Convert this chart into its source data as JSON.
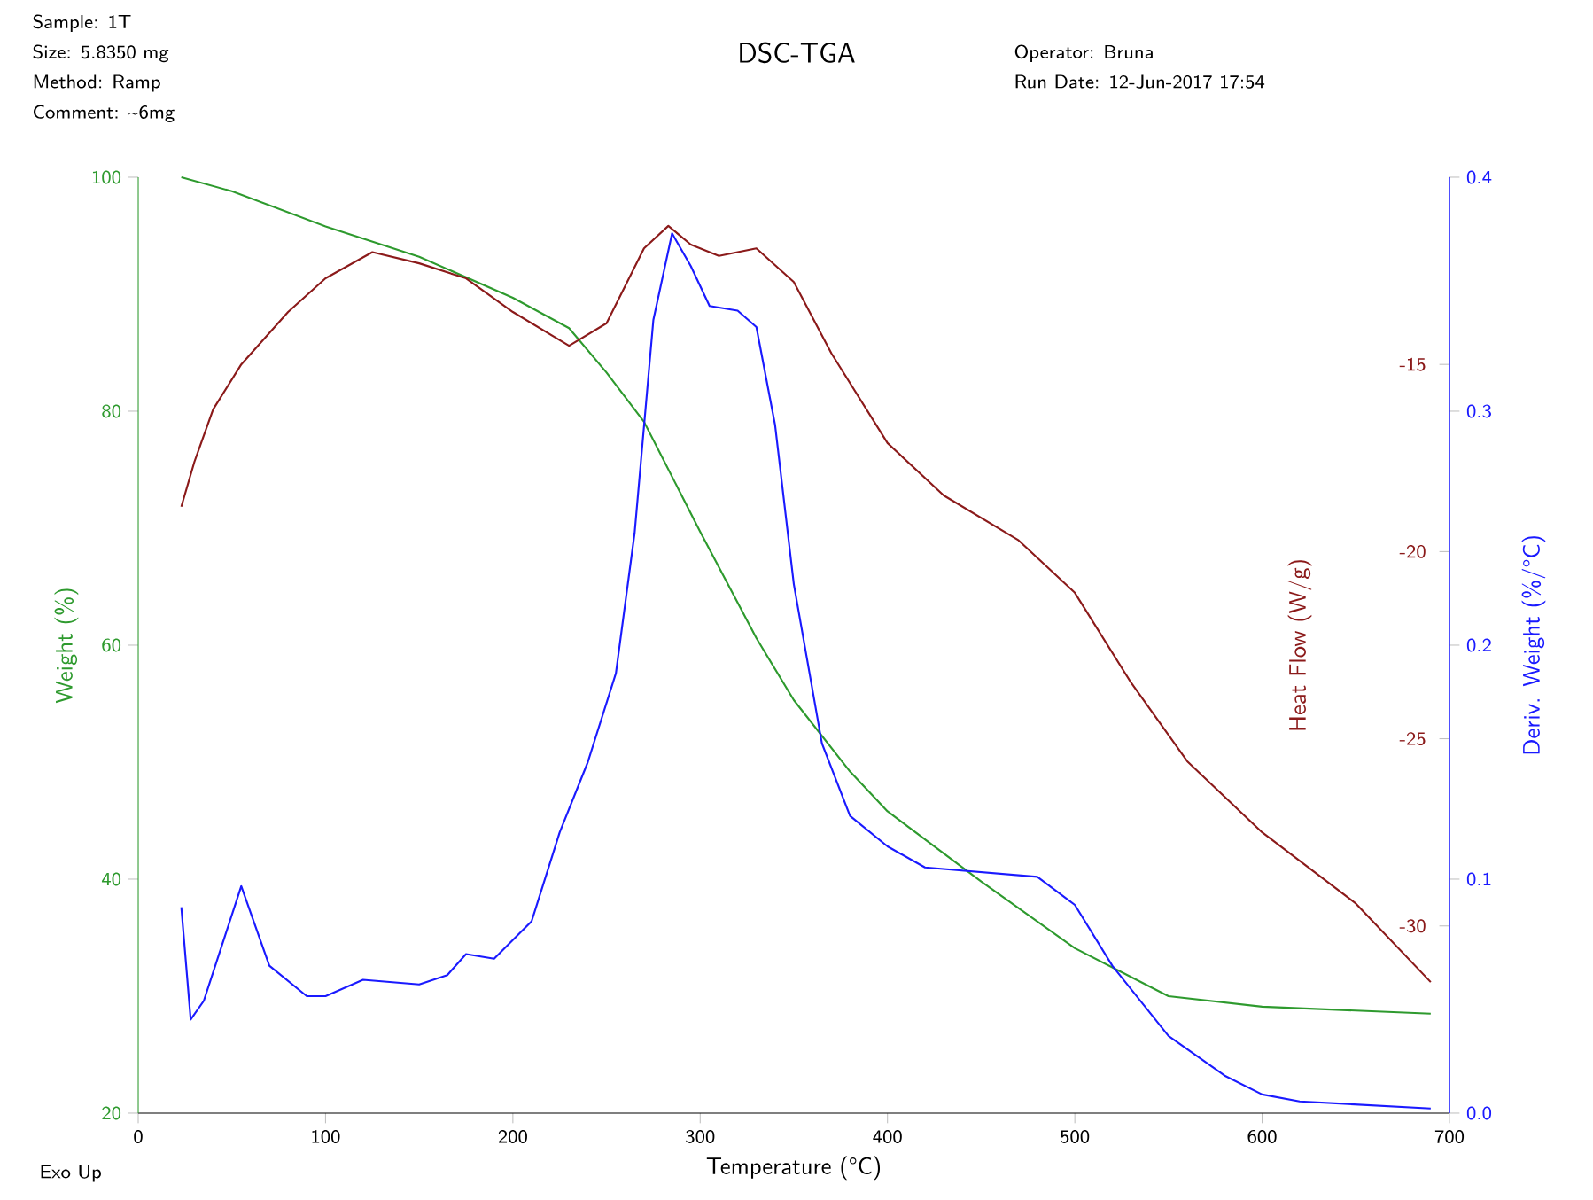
{
  "chart_data": {
    "type": "line",
    "title": "DSC-TGA",
    "xlabel": "Temperature (°C)",
    "ylabel": "Weight (%)",
    "y2label": "Heat Flow (W/g)",
    "y3label": "Deriv. Weight (%/°C)",
    "annotations": [
      "Sample: 1T",
      "Size:  5.8350 mg",
      "Method: Ramp",
      "Comment: ~6mg",
      "Operator: Bruna",
      "Run Date: 12-Jun-2017 17:54",
      "Exo Up"
    ],
    "xlim": [
      0,
      700
    ],
    "xticks": [
      0,
      100,
      200,
      300,
      400,
      500,
      600,
      700
    ],
    "ylim": [
      20,
      100
    ],
    "yticks": [
      20,
      40,
      60,
      80,
      100
    ],
    "y2lim": [
      -35,
      -10
    ],
    "y2ticks": [
      -30,
      -25,
      -20,
      -15
    ],
    "y3lim": [
      0,
      0.4
    ],
    "y3ticks": [
      {
        "value": 0,
        "label": "0.0"
      },
      0.1,
      0.2,
      0.3,
      0.4
    ],
    "series": [
      {
        "color": "#2e9a2e",
        "axis": "y",
        "x": [
          23,
          50,
          100,
          150,
          200,
          230,
          250,
          270,
          300,
          330,
          350,
          380,
          400,
          450,
          500,
          550,
          600,
          690
        ],
        "values": [
          100,
          98.8,
          95.8,
          93.2,
          89.7,
          87.1,
          83.3,
          79.1,
          69.7,
          60.6,
          55.3,
          49.2,
          45.8,
          39.8,
          34.1,
          30,
          29.1,
          28.5
        ]
      },
      {
        "color": "#8b1a1a",
        "axis": "y2",
        "x": [
          23,
          30,
          40,
          55,
          80,
          100,
          125,
          150,
          175,
          200,
          230,
          250,
          270,
          283,
          295,
          310,
          330,
          350,
          370,
          400,
          430,
          470,
          500,
          530,
          560,
          600,
          650,
          690
        ],
        "values": [
          -18.8,
          -17.6,
          -16.2,
          -15,
          -13.6,
          -12.7,
          -12.0,
          -12.3,
          -12.7,
          -13.6,
          -14.5,
          -13.9,
          -11.9,
          -11.3,
          -11.8,
          -12.1,
          -11.9,
          -12.8,
          -14.7,
          -17.1,
          -18.5,
          -19.7,
          -21.1,
          -23.5,
          -25.6,
          -27.5,
          -29.4,
          -31.5
        ]
      },
      {
        "color": "#1a1aff",
        "axis": "y3",
        "x": [
          23,
          28,
          35,
          55,
          70,
          90,
          100,
          120,
          150,
          165,
          175,
          190,
          210,
          225,
          240,
          255,
          265,
          275,
          285,
          295,
          305,
          320,
          330,
          340,
          350,
          365,
          380,
          400,
          420,
          450,
          480,
          500,
          520,
          550,
          580,
          600,
          620,
          690
        ],
        "values": [
          0.088,
          0.04,
          0.048,
          0.097,
          0.063,
          0.05,
          0.05,
          0.057,
          0.055,
          0.059,
          0.068,
          0.066,
          0.082,
          0.12,
          0.15,
          0.188,
          0.248,
          0.339,
          0.376,
          0.362,
          0.345,
          0.343,
          0.336,
          0.294,
          0.226,
          0.158,
          0.127,
          0.114,
          0.105,
          0.103,
          0.101,
          0.089,
          0.063,
          0.033,
          0.016,
          0.008,
          0.005,
          0.002
        ]
      }
    ]
  }
}
